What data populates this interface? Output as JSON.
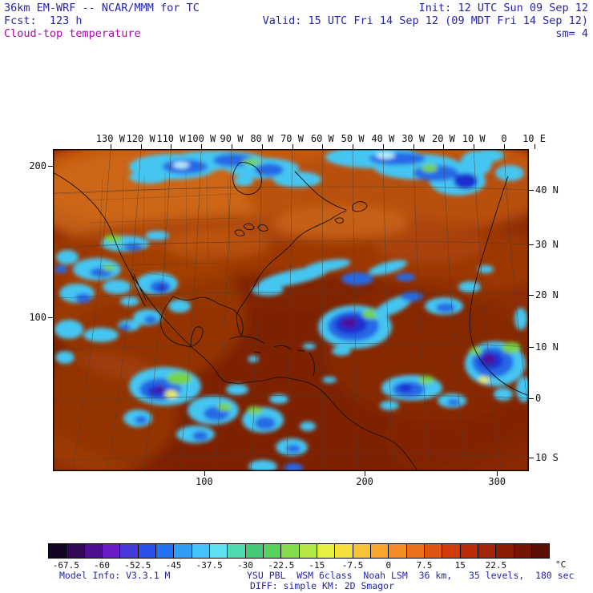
{
  "header": {
    "line1_left": "36km EM-WRF -- NCAR/MMM for TC",
    "line1_right": "Init: 12 UTC Sun 09 Sep 12",
    "line2_left": "Fcst:  123 h",
    "line2_right": "Valid: 15 UTC Fri 14 Sep 12 (09 MDT Fri 14 Sep 12)",
    "line3_left": "Cloud-top temperature",
    "line3_right": "sm= 4",
    "text_color": "#2525a8",
    "variable_color": "#b800b8"
  },
  "map": {
    "axes": {
      "top": [
        {
          "t": "130 W",
          "p": 12.1
        },
        {
          "t": "120 W",
          "p": 18.46
        },
        {
          "t": "110 W",
          "p": 24.82
        },
        {
          "t": "100 W",
          "p": 31.18
        },
        {
          "t": "90 W",
          "p": 37.54
        },
        {
          "t": "80 W",
          "p": 43.9
        },
        {
          "t": "70 W",
          "p": 50.26
        },
        {
          "t": "60 W",
          "p": 56.62
        },
        {
          "t": "50 W",
          "p": 62.98
        },
        {
          "t": "40 W",
          "p": 69.34
        },
        {
          "t": "30 W",
          "p": 75.7
        },
        {
          "t": "20 W",
          "p": 82.06
        },
        {
          "t": "10 W",
          "p": 88.42
        },
        {
          "t": "0",
          "p": 94.78
        },
        {
          "t": "10 E",
          "p": 101.1
        }
      ],
      "left": [
        {
          "t": "200",
          "p": 5.2
        },
        {
          "t": "100",
          "p": 52.2
        }
      ],
      "right": [
        {
          "t": "40 N",
          "p": 12.7
        },
        {
          "t": "30 N",
          "p": 29.6
        },
        {
          "t": "20 N",
          "p": 45.3
        },
        {
          "t": "10 N",
          "p": 61.4
        },
        {
          "t": "0",
          "p": 77.4
        },
        {
          "t": "10 S",
          "p": 95.8
        }
      ],
      "bottom": [
        {
          "t": "100",
          "p": 31.8
        },
        {
          "t": "200",
          "p": 65.5
        },
        {
          "t": "300",
          "p": 93.3
        }
      ]
    }
  },
  "colorbar": {
    "colors": [
      "#150423",
      "#320a55",
      "#4e1090",
      "#6b1ac8",
      "#4438d8",
      "#2b50e8",
      "#2472f2",
      "#2f9cf6",
      "#45c2f8",
      "#60e0f0",
      "#50d8b0",
      "#44c878",
      "#58d05c",
      "#84dc4c",
      "#b4e844",
      "#e4f044",
      "#f4e03c",
      "#f8c434",
      "#f8a82c",
      "#f48c24",
      "#ec701c",
      "#e05414",
      "#d03c0c",
      "#bc2c08",
      "#a42406",
      "#8c1c04",
      "#741403",
      "#5c0e02"
    ],
    "labels": [
      "-67.5",
      "-60",
      "-52.5",
      "-45",
      "-37.5",
      "-30",
      "-22.5",
      "-15",
      "-7.5",
      "0",
      "7.5",
      "15",
      "22.5"
    ],
    "unit": "°C"
  },
  "footer": {
    "line1_left": "Model Info: V3.3.1 M",
    "line1_right": "YSU PBL  WSM 6class  Noah LSM  36 km,   35 levels,  180 sec",
    "line2": "DIFF: simple KM: 2D Smagor"
  }
}
